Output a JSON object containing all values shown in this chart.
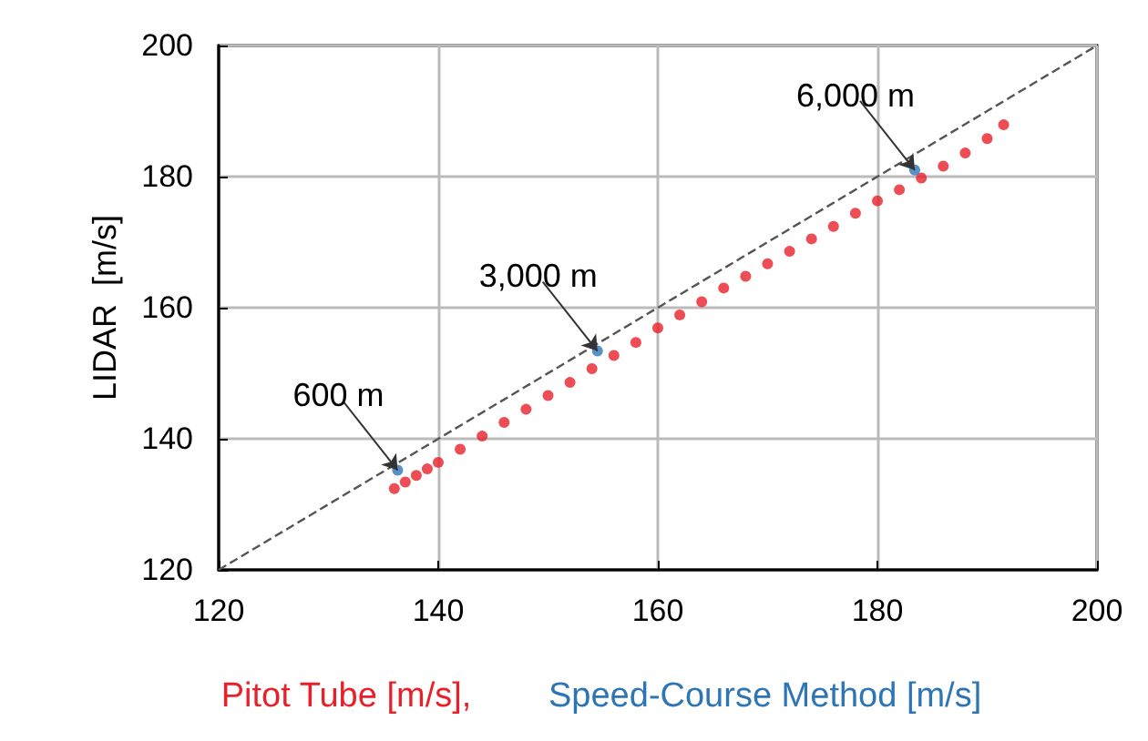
{
  "chart_data": {
    "type": "scatter",
    "ylabel": "LIDAR  [m/s]",
    "xlim": [
      120,
      200
    ],
    "ylim": [
      120,
      200
    ],
    "xticks": [
      120,
      140,
      160,
      180,
      200
    ],
    "yticks": [
      120,
      140,
      160,
      180,
      200
    ],
    "grid": true,
    "legend": "bottom",
    "marker": "circle",
    "series": [
      {
        "type": "line",
        "color": "#555555",
        "line_style": "dashed",
        "marker": "none",
        "x": [
          120,
          200
        ],
        "values": [
          120,
          200
        ]
      },
      {
        "name": "Pitot Tube [m/s],",
        "color": "#e8202a",
        "x": [
          136,
          137,
          138,
          139,
          140,
          142,
          144,
          146,
          148,
          150,
          152,
          154,
          156,
          158,
          160,
          162,
          164,
          166,
          168,
          170,
          172,
          174,
          176,
          178,
          180,
          182,
          184,
          186,
          188,
          190,
          191.5
        ],
        "values": [
          132.4,
          133.4,
          134.4,
          135.4,
          136.4,
          138.4,
          140.4,
          142.5,
          144.5,
          146.6,
          148.6,
          150.7,
          152.7,
          154.7,
          156.9,
          158.9,
          160.9,
          163.0,
          164.8,
          166.7,
          168.6,
          170.5,
          172.4,
          174.4,
          176.3,
          178.0,
          179.8,
          181.6,
          183.6,
          185.8,
          187.9
        ]
      },
      {
        "name": "Speed-Course Method [m/s]",
        "color": "#2e75b6",
        "x": [
          136.3,
          154.5,
          183.4
        ],
        "values": [
          135.2,
          153.4,
          181
        ]
      }
    ],
    "annotations": [
      {
        "text": "600 m",
        "x": 136.3,
        "y": 135.2
      },
      {
        "text": "3,000 m",
        "x": 154.5,
        "y": 153.4
      },
      {
        "text": "6,000 m",
        "x": 183.4,
        "y": 181
      }
    ]
  }
}
